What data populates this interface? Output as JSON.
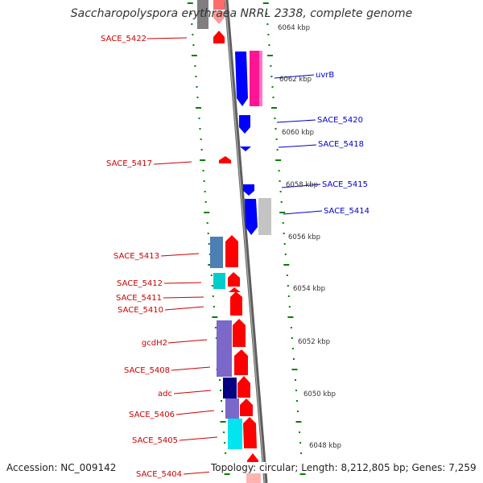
{
  "title": "Saccharopolyspora erythraea NRRL 2338, complete genome",
  "footer": {
    "accession": "Accession: NC_009142",
    "topology": "Topology: circular; Length: 8,212,805 bp; Genes: 7,259"
  },
  "colors": {
    "forward_gene": "#ff0000",
    "reverse_gene": "#0000ff",
    "left_label": "#cc0000",
    "right_label": "#0000cc",
    "tick": "#008000",
    "backbone": "#777777"
  },
  "kbp_labels": [
    "6064 kbp",
    "6062 kbp",
    "6060 kbp",
    "6058 kbp",
    "6056 kbp",
    "6054 kbp",
    "6052 kbp",
    "6050 kbp",
    "6048 kbp"
  ],
  "left_genes": [
    "SACE_5422",
    "SACE_5417",
    "SACE_5413",
    "SACE_5412",
    "SACE_5411",
    "SACE_5410",
    "gcdH2",
    "SACE_5408",
    "adc",
    "SACE_5406",
    "SACE_5405",
    "SACE_5404"
  ],
  "right_genes": [
    "uvrB",
    "SACE_5420",
    "SACE_5418",
    "SACE_5415",
    "SACE_5414"
  ]
}
